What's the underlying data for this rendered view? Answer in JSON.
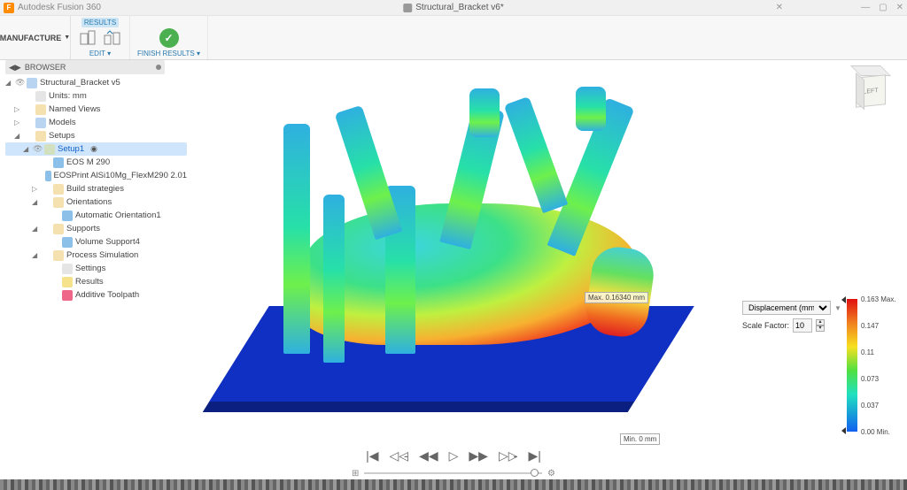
{
  "app": {
    "icon_letter": "F",
    "title": "Autodesk Fusion 360"
  },
  "document": {
    "title": "Structural_Bracket v6*"
  },
  "window_controls": {
    "min": "—",
    "max": "▢",
    "close": "✕"
  },
  "quickbar": [
    {
      "name": "new-design",
      "glyph": "+",
      "cls": "plus"
    },
    {
      "name": "notifications",
      "glyph": "✉",
      "cls": ""
    },
    {
      "name": "extensions",
      "glyph": "◆",
      "cls": "active"
    },
    {
      "name": "job-status",
      "glyph": "⧗",
      "cls": ""
    },
    {
      "name": "help",
      "glyph": "?",
      "cls": ""
    },
    {
      "name": "profile",
      "glyph": "👤",
      "cls": ""
    }
  ],
  "workspace": "MANUFACTURE",
  "ribbon": {
    "results_tab": "RESULTS",
    "edit_label": "EDIT ▾",
    "finish_label": "FINISH RESULTS ▾"
  },
  "browser_header": "BROWSER",
  "tree": [
    {
      "d": 0,
      "tri": "◢",
      "eye": "👁",
      "ic": "cube",
      "txt": "Structural_Bracket v5"
    },
    {
      "d": 1,
      "tri": "",
      "eye": "",
      "ic": "doc",
      "txt": "Units: mm"
    },
    {
      "d": 1,
      "tri": "▷",
      "eye": "",
      "ic": "folder",
      "txt": "Named Views"
    },
    {
      "d": 1,
      "tri": "▷",
      "eye": "",
      "ic": "cube",
      "txt": "Models"
    },
    {
      "d": 1,
      "tri": "◢",
      "eye": "",
      "ic": "folder",
      "txt": "Setups"
    },
    {
      "d": 2,
      "tri": "◢",
      "eye": "👁",
      "ic": "gear",
      "txt": "Setup1",
      "sel": true,
      "radio": true
    },
    {
      "d": 3,
      "tri": "",
      "eye": "",
      "ic": "blue",
      "txt": "EOS M 290"
    },
    {
      "d": 3,
      "tri": "",
      "eye": "",
      "ic": "blue",
      "txt": "EOSPrint AlSi10Mg_FlexM290 2.01"
    },
    {
      "d": 3,
      "tri": "▷",
      "eye": "",
      "ic": "folder",
      "txt": "Build strategies"
    },
    {
      "d": 3,
      "tri": "◢",
      "eye": "",
      "ic": "folder",
      "txt": "Orientations"
    },
    {
      "d": 4,
      "tri": "",
      "eye": "",
      "ic": "blue",
      "txt": "Automatic Orientation1"
    },
    {
      "d": 3,
      "tri": "◢",
      "eye": "",
      "ic": "folder",
      "txt": "Supports"
    },
    {
      "d": 4,
      "tri": "",
      "eye": "",
      "ic": "blue",
      "txt": "Volume Support4"
    },
    {
      "d": 3,
      "tri": "◢",
      "eye": "",
      "ic": "folder",
      "txt": "Process Simulation"
    },
    {
      "d": 4,
      "tri": "",
      "eye": "",
      "ic": "doc",
      "txt": "Settings"
    },
    {
      "d": 4,
      "tri": "",
      "eye": "",
      "ic": "warn",
      "txt": "Results"
    },
    {
      "d": 4,
      "tri": "",
      "eye": "",
      "ic": "err",
      "txt": "Additive Toolpath"
    }
  ],
  "viewcube": {
    "face": "LEFT"
  },
  "callouts": {
    "max": "Max. 0.16340 mm",
    "min": "Min. 0 mm"
  },
  "legend": {
    "metric_label": "Displacement (mm)",
    "scale_label": "Scale Factor:",
    "scale_value": "10",
    "ticks": [
      "0.163 Max.",
      "0.147",
      "0.11",
      "0.073",
      "0.037",
      "0.00 Min."
    ]
  },
  "playback": {
    "buttons": [
      {
        "name": "go-start",
        "g": "|◀"
      },
      {
        "name": "step-back-key",
        "g": "◁◁̵"
      },
      {
        "name": "step-back",
        "g": "◀◀"
      },
      {
        "name": "play",
        "g": "▷"
      },
      {
        "name": "step-fwd",
        "g": "▶▶"
      },
      {
        "name": "step-fwd-key",
        "g": "▷▷̵"
      },
      {
        "name": "go-end",
        "g": "▶|"
      }
    ]
  },
  "styling": {
    "accent": "#ff8c00",
    "selection": "#cfe5fb",
    "baseplate_color": "#1030c3",
    "colorbar_gradient": [
      "#e01010",
      "#f08020",
      "#f7e020",
      "#50e040",
      "#20e0c0",
      "#1060f0"
    ]
  }
}
